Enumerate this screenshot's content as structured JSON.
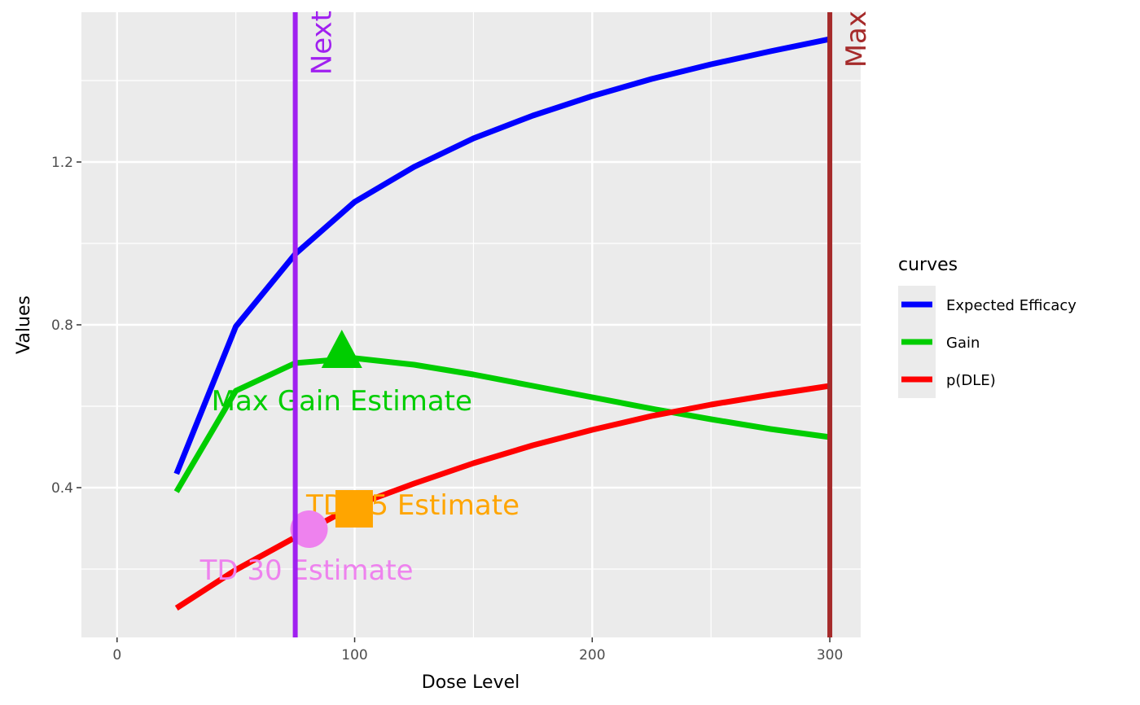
{
  "chart_data": {
    "type": "line",
    "title": "",
    "xlabel": "Dose Level",
    "ylabel": "Values",
    "xlim": [
      -15,
      313
    ],
    "ylim": [
      0.032,
      1.568
    ],
    "x_ticks": [
      0,
      100,
      200,
      300
    ],
    "x_tick_labels": [
      "0",
      "100",
      "200",
      "300"
    ],
    "y_ticks": [
      0.4,
      0.8,
      1.2
    ],
    "y_tick_labels": [
      "0.4",
      "0.8",
      "1.2"
    ],
    "grid": true,
    "legend": {
      "title": "curves",
      "placement": "right"
    },
    "x": [
      25,
      50,
      75,
      100,
      125,
      150,
      175,
      200,
      225,
      250,
      275,
      300
    ],
    "series": [
      {
        "name": "Expected Efficacy",
        "color": "#0000ff",
        "values": [
          0.434,
          0.796,
          0.974,
          1.102,
          1.188,
          1.258,
          1.314,
          1.362,
          1.404,
          1.44,
          1.472,
          1.502
        ]
      },
      {
        "name": "Gain",
        "color": "#00cd00",
        "values": [
          0.39,
          0.638,
          0.706,
          0.718,
          0.702,
          0.678,
          0.65,
          0.622,
          0.594,
          0.568,
          0.544,
          0.524
        ]
      },
      {
        "name": "p(DLE)",
        "color": "#ff0000",
        "values": [
          0.104,
          0.198,
          0.278,
          0.356,
          0.41,
          0.46,
          0.504,
          0.542,
          0.576,
          0.604,
          0.628,
          0.65
        ]
      }
    ],
    "vlines": [
      {
        "label": "Next",
        "x": 75,
        "color": "#a020f0"
      },
      {
        "label": "Max",
        "x": 300,
        "color": "#a52a2a"
      }
    ],
    "markers": [
      {
        "shape": "triangle",
        "x": 94.6,
        "y": 0.734,
        "color": "#00cd00"
      },
      {
        "shape": "square",
        "x": 99.8,
        "y": 0.348,
        "color": "#ffa500"
      },
      {
        "shape": "circle",
        "x": 80.8,
        "y": 0.298,
        "color": "#ee82ee"
      }
    ],
    "annotations": [
      {
        "text": "Max Gain Estimate",
        "x": 94.6,
        "y": 0.614,
        "color": "#00cd00"
      },
      {
        "text": "TD 35 Estimate",
        "x": 124.5,
        "y": 0.358,
        "color": "#ffa500"
      },
      {
        "text": "TD 30 Estimate",
        "x": 79.8,
        "y": 0.198,
        "color": "#ee82ee"
      }
    ]
  }
}
